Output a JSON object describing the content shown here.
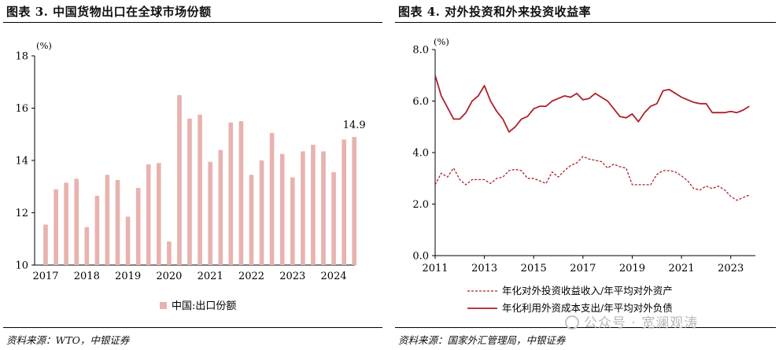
{
  "chart_data": [
    {
      "type": "bar",
      "title": "图表 3. 中国货物出口在全球市场份额",
      "unit_label": "(%)",
      "ylim": [
        10,
        18
      ],
      "yticks": [
        10,
        12,
        14,
        16,
        18
      ],
      "x_tick_labels": [
        "2017",
        "2018",
        "2019",
        "2020",
        "2021",
        "2022",
        "2023",
        "2024"
      ],
      "values": [
        11.55,
        12.9,
        13.15,
        13.3,
        11.45,
        12.65,
        13.45,
        13.25,
        11.85,
        12.95,
        13.85,
        13.9,
        10.9,
        16.5,
        15.6,
        15.75,
        13.95,
        14.4,
        15.45,
        15.5,
        13.45,
        14.0,
        15.05,
        14.25,
        13.35,
        14.35,
        14.6,
        14.35,
        13.55,
        14.8,
        14.9
      ],
      "data_label": "14.9",
      "legend": [
        "中国:出口份额"
      ],
      "legend_position": "bottom",
      "bar_color": "#e8b2ae",
      "source": "资料来源：WTO，中银证券"
    },
    {
      "type": "line",
      "title": "图表 4. 对外投资和外来投资收益率",
      "unit_label": "(%)",
      "ylim": [
        0,
        8
      ],
      "yticks": [
        "0.0",
        "2.0",
        "4.0",
        "6.0",
        "8.0"
      ],
      "xlim": [
        2011,
        2024
      ],
      "x_tick_labels": [
        "2011",
        "2013",
        "2015",
        "2017",
        "2019",
        "2021",
        "2023"
      ],
      "series": [
        {
          "name": "年化对外投资收益收入/年平均对外资产",
          "style": "dashed",
          "color": "#b0202a",
          "x": [
            2011.0,
            2011.25,
            2011.5,
            2011.75,
            2012.0,
            2012.25,
            2012.5,
            2012.75,
            2013.0,
            2013.25,
            2013.5,
            2013.75,
            2014.0,
            2014.25,
            2014.5,
            2014.75,
            2015.0,
            2015.25,
            2015.5,
            2015.75,
            2016.0,
            2016.25,
            2016.5,
            2016.75,
            2017.0,
            2017.25,
            2017.5,
            2017.75,
            2018.0,
            2018.25,
            2018.5,
            2018.75,
            2019.0,
            2019.25,
            2019.5,
            2019.75,
            2020.0,
            2020.25,
            2020.5,
            2020.75,
            2021.0,
            2021.25,
            2021.5,
            2021.75,
            2022.0,
            2022.25,
            2022.5,
            2022.75,
            2023.0,
            2023.25,
            2023.5,
            2023.75
          ],
          "y": [
            2.75,
            3.2,
            3.05,
            3.4,
            2.95,
            2.75,
            2.95,
            2.95,
            2.95,
            2.8,
            3.0,
            3.05,
            3.3,
            3.35,
            3.3,
            3.0,
            3.0,
            2.9,
            2.8,
            3.25,
            3.05,
            3.3,
            3.5,
            3.6,
            3.85,
            3.75,
            3.7,
            3.65,
            3.4,
            3.55,
            3.45,
            3.4,
            2.75,
            2.75,
            2.75,
            2.75,
            3.15,
            3.3,
            3.3,
            3.25,
            3.1,
            2.9,
            2.6,
            2.55,
            2.7,
            2.6,
            2.7,
            2.55,
            2.3,
            2.15,
            2.25,
            2.35
          ]
        },
        {
          "name": "年化利用外资成本支出/年平均对外负债",
          "style": "solid",
          "color": "#b0202a",
          "x": [
            2011.0,
            2011.25,
            2011.5,
            2011.75,
            2012.0,
            2012.25,
            2012.5,
            2012.75,
            2013.0,
            2013.25,
            2013.5,
            2013.75,
            2014.0,
            2014.25,
            2014.5,
            2014.75,
            2015.0,
            2015.25,
            2015.5,
            2015.75,
            2016.0,
            2016.25,
            2016.5,
            2016.75,
            2017.0,
            2017.25,
            2017.5,
            2017.75,
            2018.0,
            2018.25,
            2018.5,
            2018.75,
            2019.0,
            2019.25,
            2019.5,
            2019.75,
            2020.0,
            2020.25,
            2020.5,
            2020.75,
            2021.0,
            2021.25,
            2021.5,
            2021.75,
            2022.0,
            2022.25,
            2022.5,
            2022.75,
            2023.0,
            2023.25,
            2023.5,
            2023.75
          ],
          "y": [
            7.0,
            6.2,
            5.75,
            5.3,
            5.3,
            5.55,
            6.0,
            6.2,
            6.6,
            6.0,
            5.6,
            5.3,
            4.8,
            5.0,
            5.3,
            5.4,
            5.7,
            5.8,
            5.8,
            6.0,
            6.1,
            6.2,
            6.15,
            6.3,
            6.05,
            6.1,
            6.3,
            6.15,
            6.0,
            5.7,
            5.4,
            5.35,
            5.5,
            5.2,
            5.55,
            5.8,
            5.9,
            6.4,
            6.45,
            6.3,
            6.15,
            6.05,
            5.95,
            5.9,
            5.9,
            5.55,
            5.55,
            5.55,
            5.6,
            5.55,
            5.65,
            5.8
          ]
        }
      ],
      "legend_position": "bottom",
      "source": "资料来源：国家外汇管理局，中银证券"
    }
  ],
  "watermark": {
    "icon": "wechat-icon",
    "text": "公众号 · 宽澜观涛"
  }
}
